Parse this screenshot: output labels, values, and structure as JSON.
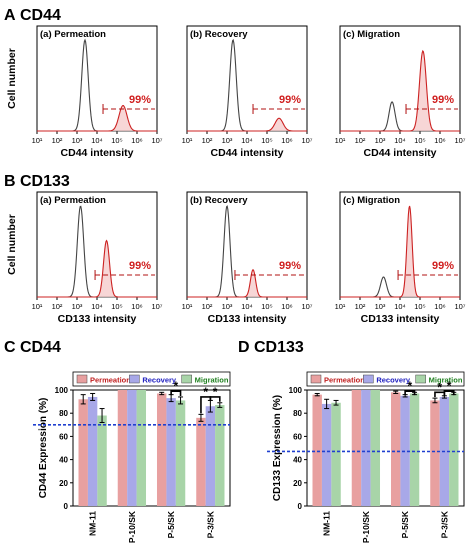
{
  "sections": [
    {
      "letter": "A",
      "title": "CD44"
    },
    {
      "letter": "B",
      "title": "CD133"
    },
    {
      "letter": "C",
      "title": "CD44"
    },
    {
      "letter": "D",
      "title": "CD133"
    }
  ],
  "chart_data": [
    {
      "type": "area",
      "id": "A-a",
      "title": "(a) Permeation",
      "xlabel": "CD44 intensity",
      "ylabel": "Cell number",
      "xscale": "log",
      "xlim": [
        10,
        10000000
      ],
      "x_ticks": [
        "10¹",
        "10²",
        "10³",
        "10⁴",
        "10⁵",
        "10⁶",
        "10⁷"
      ],
      "gate_start": 20000,
      "gate_label": "99%",
      "series": [
        {
          "color": "#444444",
          "peak_x": 2500,
          "peak_height": 1.0,
          "width": 0.16
        },
        {
          "color": "#cc2222",
          "fill": "#f4c4c4",
          "peak_x": 200000,
          "peak_height": 0.28,
          "width": 0.2
        }
      ]
    },
    {
      "type": "area",
      "id": "A-b",
      "title": "(b) Recovery",
      "xlabel": "CD44 intensity",
      "ylabel": "",
      "xscale": "log",
      "xlim": [
        10,
        10000000
      ],
      "x_ticks": [
        "10¹",
        "10²",
        "10³",
        "10⁴",
        "10⁵",
        "10⁶",
        "10⁷"
      ],
      "gate_start": 20000,
      "gate_label": "99%",
      "series": [
        {
          "color": "#444444",
          "peak_x": 2000,
          "peak_height": 1.0,
          "width": 0.16
        },
        {
          "color": "#cc2222",
          "fill": "#f4c4c4",
          "peak_x": 400000,
          "peak_height": 0.14,
          "width": 0.2
        }
      ]
    },
    {
      "type": "area",
      "id": "A-c",
      "title": "(c) Migration",
      "xlabel": "CD44 intensity",
      "ylabel": "",
      "xscale": "log",
      "xlim": [
        10,
        10000000
      ],
      "x_ticks": [
        "10¹",
        "10²",
        "10³",
        "10⁴",
        "10⁵",
        "10⁶",
        "10⁷"
      ],
      "gate_start": 20000,
      "gate_label": "99%",
      "series": [
        {
          "color": "#444444",
          "peak_x": 4000,
          "peak_height": 0.32,
          "width": 0.15
        },
        {
          "color": "#cc2222",
          "fill": "#f4c4c4",
          "peak_x": 140000,
          "peak_height": 0.88,
          "width": 0.17
        }
      ]
    },
    {
      "type": "area",
      "id": "B-a",
      "title": "(a) Permeation",
      "xlabel": "CD133 intensity",
      "ylabel": "Cell number",
      "xscale": "log",
      "xlim": [
        10,
        10000000
      ],
      "x_ticks": [
        "10¹",
        "10²",
        "10³",
        "10⁴",
        "10⁵",
        "10⁶",
        "10⁷"
      ],
      "gate_start": 8000,
      "gate_label": "99%",
      "series": [
        {
          "color": "#444444",
          "peak_x": 1500,
          "peak_height": 1.0,
          "width": 0.16
        },
        {
          "color": "#cc2222",
          "fill": "#f4c4c4",
          "peak_x": 30000,
          "peak_height": 0.62,
          "width": 0.15
        }
      ]
    },
    {
      "type": "area",
      "id": "B-b",
      "title": "(b) Recovery",
      "xlabel": "CD133 intensity",
      "ylabel": "",
      "xscale": "log",
      "xlim": [
        10,
        10000000
      ],
      "x_ticks": [
        "10¹",
        "10²",
        "10³",
        "10⁴",
        "10⁵",
        "10⁶",
        "10⁷"
      ],
      "gate_start": 2500,
      "gate_label": "99%",
      "series": [
        {
          "color": "#444444",
          "peak_x": 1000,
          "peak_height": 1.0,
          "width": 0.15
        },
        {
          "color": "#cc2222",
          "fill": "#f4c4c4",
          "peak_x": 20000,
          "peak_height": 0.3,
          "width": 0.13
        }
      ]
    },
    {
      "type": "area",
      "id": "B-c",
      "title": "(c) Migration",
      "xlabel": "CD133 intensity",
      "ylabel": "",
      "xscale": "log",
      "xlim": [
        10,
        10000000
      ],
      "x_ticks": [
        "10¹",
        "10²",
        "10³",
        "10⁴",
        "10⁵",
        "10⁶",
        "10⁷"
      ],
      "gate_start": 8000,
      "gate_label": "99%",
      "series": [
        {
          "color": "#444444",
          "peak_x": 1500,
          "peak_height": 0.22,
          "width": 0.15
        },
        {
          "color": "#cc2222",
          "fill": "#f4c4c4",
          "peak_x": 30000,
          "peak_height": 1.0,
          "width": 0.13
        }
      ]
    },
    {
      "type": "bar",
      "id": "C",
      "title": "",
      "ylabel": "CD44 Expression (%)",
      "ylim": [
        0,
        100
      ],
      "y_ticks": [
        0,
        20,
        40,
        60,
        80,
        100
      ],
      "categories": [
        "NM-11",
        "P-10/SK",
        "P-5/SK",
        "P-3/SK"
      ],
      "series": [
        {
          "name": "Permeation",
          "color": "#e8a0a0",
          "values": [
            92,
            100,
            97,
            76
          ],
          "errors": [
            4,
            0,
            1,
            3
          ]
        },
        {
          "name": "Recovery",
          "color": "#a8a8e8",
          "values": [
            94,
            100,
            93,
            86
          ],
          "errors": [
            3,
            0,
            3,
            5
          ]
        },
        {
          "name": "Migration",
          "color": "#a8d4a8",
          "values": [
            78,
            100,
            91,
            87
          ],
          "errors": [
            6,
            0,
            3,
            2
          ]
        }
      ],
      "reference_line": 70,
      "significance": [
        {
          "category": 2,
          "from": 1,
          "to": 2,
          "label": "*"
        },
        {
          "category": 3,
          "from": 0,
          "to": 1,
          "label": "*"
        },
        {
          "category": 3,
          "from": 1,
          "to": 2,
          "label": "*"
        }
      ]
    },
    {
      "type": "bar",
      "id": "D",
      "title": "",
      "ylabel": "CD133 Expression (%)",
      "ylim": [
        0,
        100
      ],
      "y_ticks": [
        0,
        20,
        40,
        60,
        80,
        100
      ],
      "categories": [
        "NM-11",
        "P-10/SK",
        "P-5/SK",
        "P-3/SK"
      ],
      "series": [
        {
          "name": "Permeation",
          "color": "#e8a0a0",
          "values": [
            96,
            100,
            98,
            91
          ],
          "errors": [
            1,
            0,
            1,
            2
          ]
        },
        {
          "name": "Recovery",
          "color": "#a8a8e8",
          "values": [
            88,
            100,
            95,
            94
          ],
          "errors": [
            4,
            0,
            1,
            1
          ]
        },
        {
          "name": "Migration",
          "color": "#a8d4a8",
          "values": [
            89,
            100,
            97,
            97
          ],
          "errors": [
            2,
            0,
            1,
            1
          ]
        }
      ],
      "reference_line": 47,
      "significance": [
        {
          "category": 2,
          "from": 1,
          "to": 2,
          "label": "*"
        },
        {
          "category": 3,
          "from": 0,
          "to": 1,
          "label": "*"
        },
        {
          "category": 3,
          "from": 1,
          "to": 2,
          "label": "*"
        }
      ]
    }
  ]
}
